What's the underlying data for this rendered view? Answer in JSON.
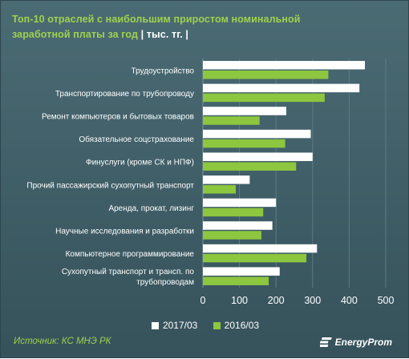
{
  "title_main": "Топ-10 отраслей с наибольшим  приростом  номинальной заработной платы за год ",
  "title_unit": "| тыс. тг. |",
  "source": "Источник: КС МНЭ РК",
  "brand": "EnergyProm",
  "colors": {
    "series_2017": "#ffffff",
    "series_2016": "#8dc63f",
    "grid": "#5e7b83",
    "text": "#ffffff",
    "accent": "#9fd24e"
  },
  "chart_data": {
    "type": "bar",
    "orientation": "horizontal",
    "title": "Топ-10 отраслей с наибольшим  приростом  номинальной заработной платы за год | тыс. тг. |",
    "categories": [
      [
        "Трудоустройство"
      ],
      [
        "Транспортирование по трубопроводу"
      ],
      [
        "Ремонт компьютеров  и бытовых товаров"
      ],
      [
        "Обязательное соцстрахование"
      ],
      [
        "Финуслуги (кроме СК и НПФ)"
      ],
      [
        "Прочий пассажирский сухопутный транспорт"
      ],
      [
        "Аренда, прокат, лизинг"
      ],
      [
        "Научные исследования и разработки"
      ],
      [
        "Компьютерное программирование"
      ],
      [
        "Сухопутный транспорт и трансп. по",
        "трубопроводам"
      ]
    ],
    "series": [
      {
        "name": "2017/03",
        "values": [
          443,
          428,
          228,
          295,
          300,
          128,
          200,
          190,
          312,
          210
        ]
      },
      {
        "name": "2016/03",
        "values": [
          343,
          333,
          155,
          225,
          255,
          90,
          165,
          160,
          283,
          180
        ]
      }
    ],
    "xlim": [
      0,
      500
    ],
    "xticks": [
      0,
      100,
      200,
      300,
      400,
      500
    ],
    "grid": true,
    "legend": "bottom"
  }
}
